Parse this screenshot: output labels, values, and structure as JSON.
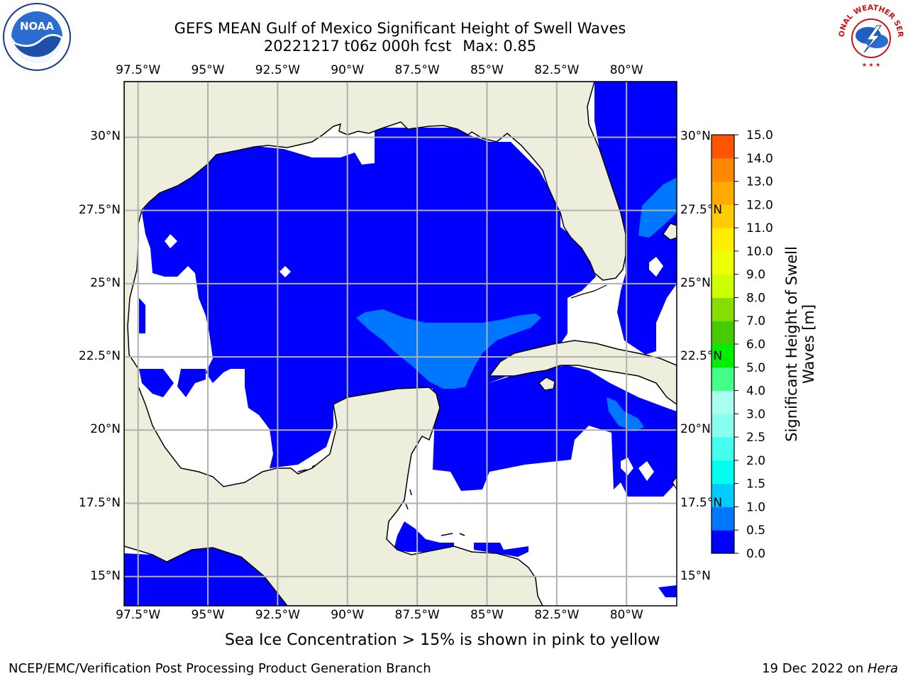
{
  "title": {
    "line1": "GEFS MEAN Gulf of Mexico Significant Height of Swell Waves",
    "date_run": "20221217 t06z 000h fcst",
    "max_label": "Max: 0.85"
  },
  "map": {
    "lon_labels": [
      "97.5°W",
      "95°W",
      "92.5°W",
      "90°W",
      "87.5°W",
      "85°W",
      "82.5°W",
      "80°W"
    ],
    "lat_labels": [
      "30°N",
      "27.5°N",
      "25°N",
      "22.5°N",
      "20°N",
      "17.5°N",
      "15°N"
    ],
    "lon_values": [
      -97.5,
      -95,
      -92.5,
      -90,
      -87.5,
      -85,
      -82.5,
      -80
    ],
    "lat_values": [
      30,
      27.5,
      25,
      22.5,
      20,
      17.5,
      15
    ],
    "lon_range": [
      -98,
      -78.2
    ],
    "lat_range": [
      14,
      31.9
    ],
    "land_color": "#eeeedd",
    "ocean_low_color": "#0000ff",
    "ocean_mid_color": "#0077ff",
    "missing_color": "#ffffff",
    "grid_color": "#b0b0b0"
  },
  "colorbar": {
    "label": "Significant Height of Swell Waves [m]",
    "label_line1": "Significant Height of Swell",
    "label_line2": "Waves [m]",
    "tick_labels": [
      "0.0",
      "0.5",
      "1.0",
      "1.5",
      "2.0",
      "2.5",
      "3.0",
      "4.0",
      "5.0",
      "6.0",
      "7.0",
      "8.0",
      "9.0",
      "10.0",
      "11.0",
      "12.0",
      "13.0",
      "14.0",
      "15.0"
    ],
    "colors": [
      "#0000ff",
      "#0077ff",
      "#00ccff",
      "#00ffee",
      "#44ffee",
      "#88ffee",
      "#aaffee",
      "#44ff88",
      "#00ee00",
      "#44cc00",
      "#88dd00",
      "#ccff00",
      "#eeff00",
      "#ffee00",
      "#ffcc00",
      "#ffaa00",
      "#ff8800",
      "#ff5500",
      "#ff2200",
      "#ff0000"
    ]
  },
  "ice_note": "Sea Ice Concentration > 15% is shown in pink to yellow",
  "footer": {
    "left": "NCEP/EMC/Verification Post Processing Product Generation Branch",
    "right_date": "19 Dec 2022 on ",
    "right_host": "Hera"
  },
  "logos": {
    "left": "noaa-logo",
    "right": "national-weather-service-logo",
    "left_text": "NOAA",
    "right_text": "NATIONAL WEATHER SERVICE"
  }
}
